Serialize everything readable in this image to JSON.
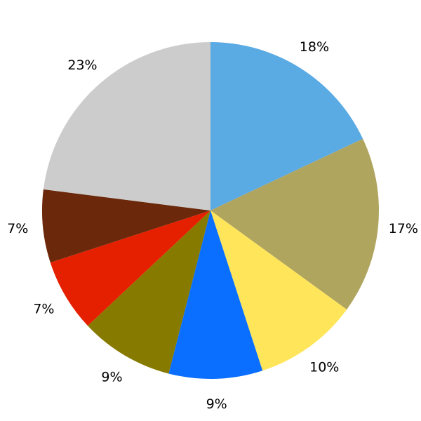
{
  "chart_data": {
    "type": "pie",
    "start": "top",
    "direction": "clockwise",
    "slices": [
      {
        "value": 18,
        "label": "18%",
        "color": "#5AAAE4"
      },
      {
        "value": 17,
        "label": "17%",
        "color": "#B0A55F"
      },
      {
        "value": 10,
        "label": "10%",
        "color": "#FFE55A"
      },
      {
        "value": 9,
        "label": "9%",
        "color": "#0A6EFF"
      },
      {
        "value": 9,
        "label": "9%",
        "color": "#877A00"
      },
      {
        "value": 7,
        "label": "7%",
        "color": "#E52000"
      },
      {
        "value": 7,
        "label": "7%",
        "color": "#6B280A"
      },
      {
        "value": 23,
        "label": "23%",
        "color": "#CCCCCC"
      }
    ]
  }
}
